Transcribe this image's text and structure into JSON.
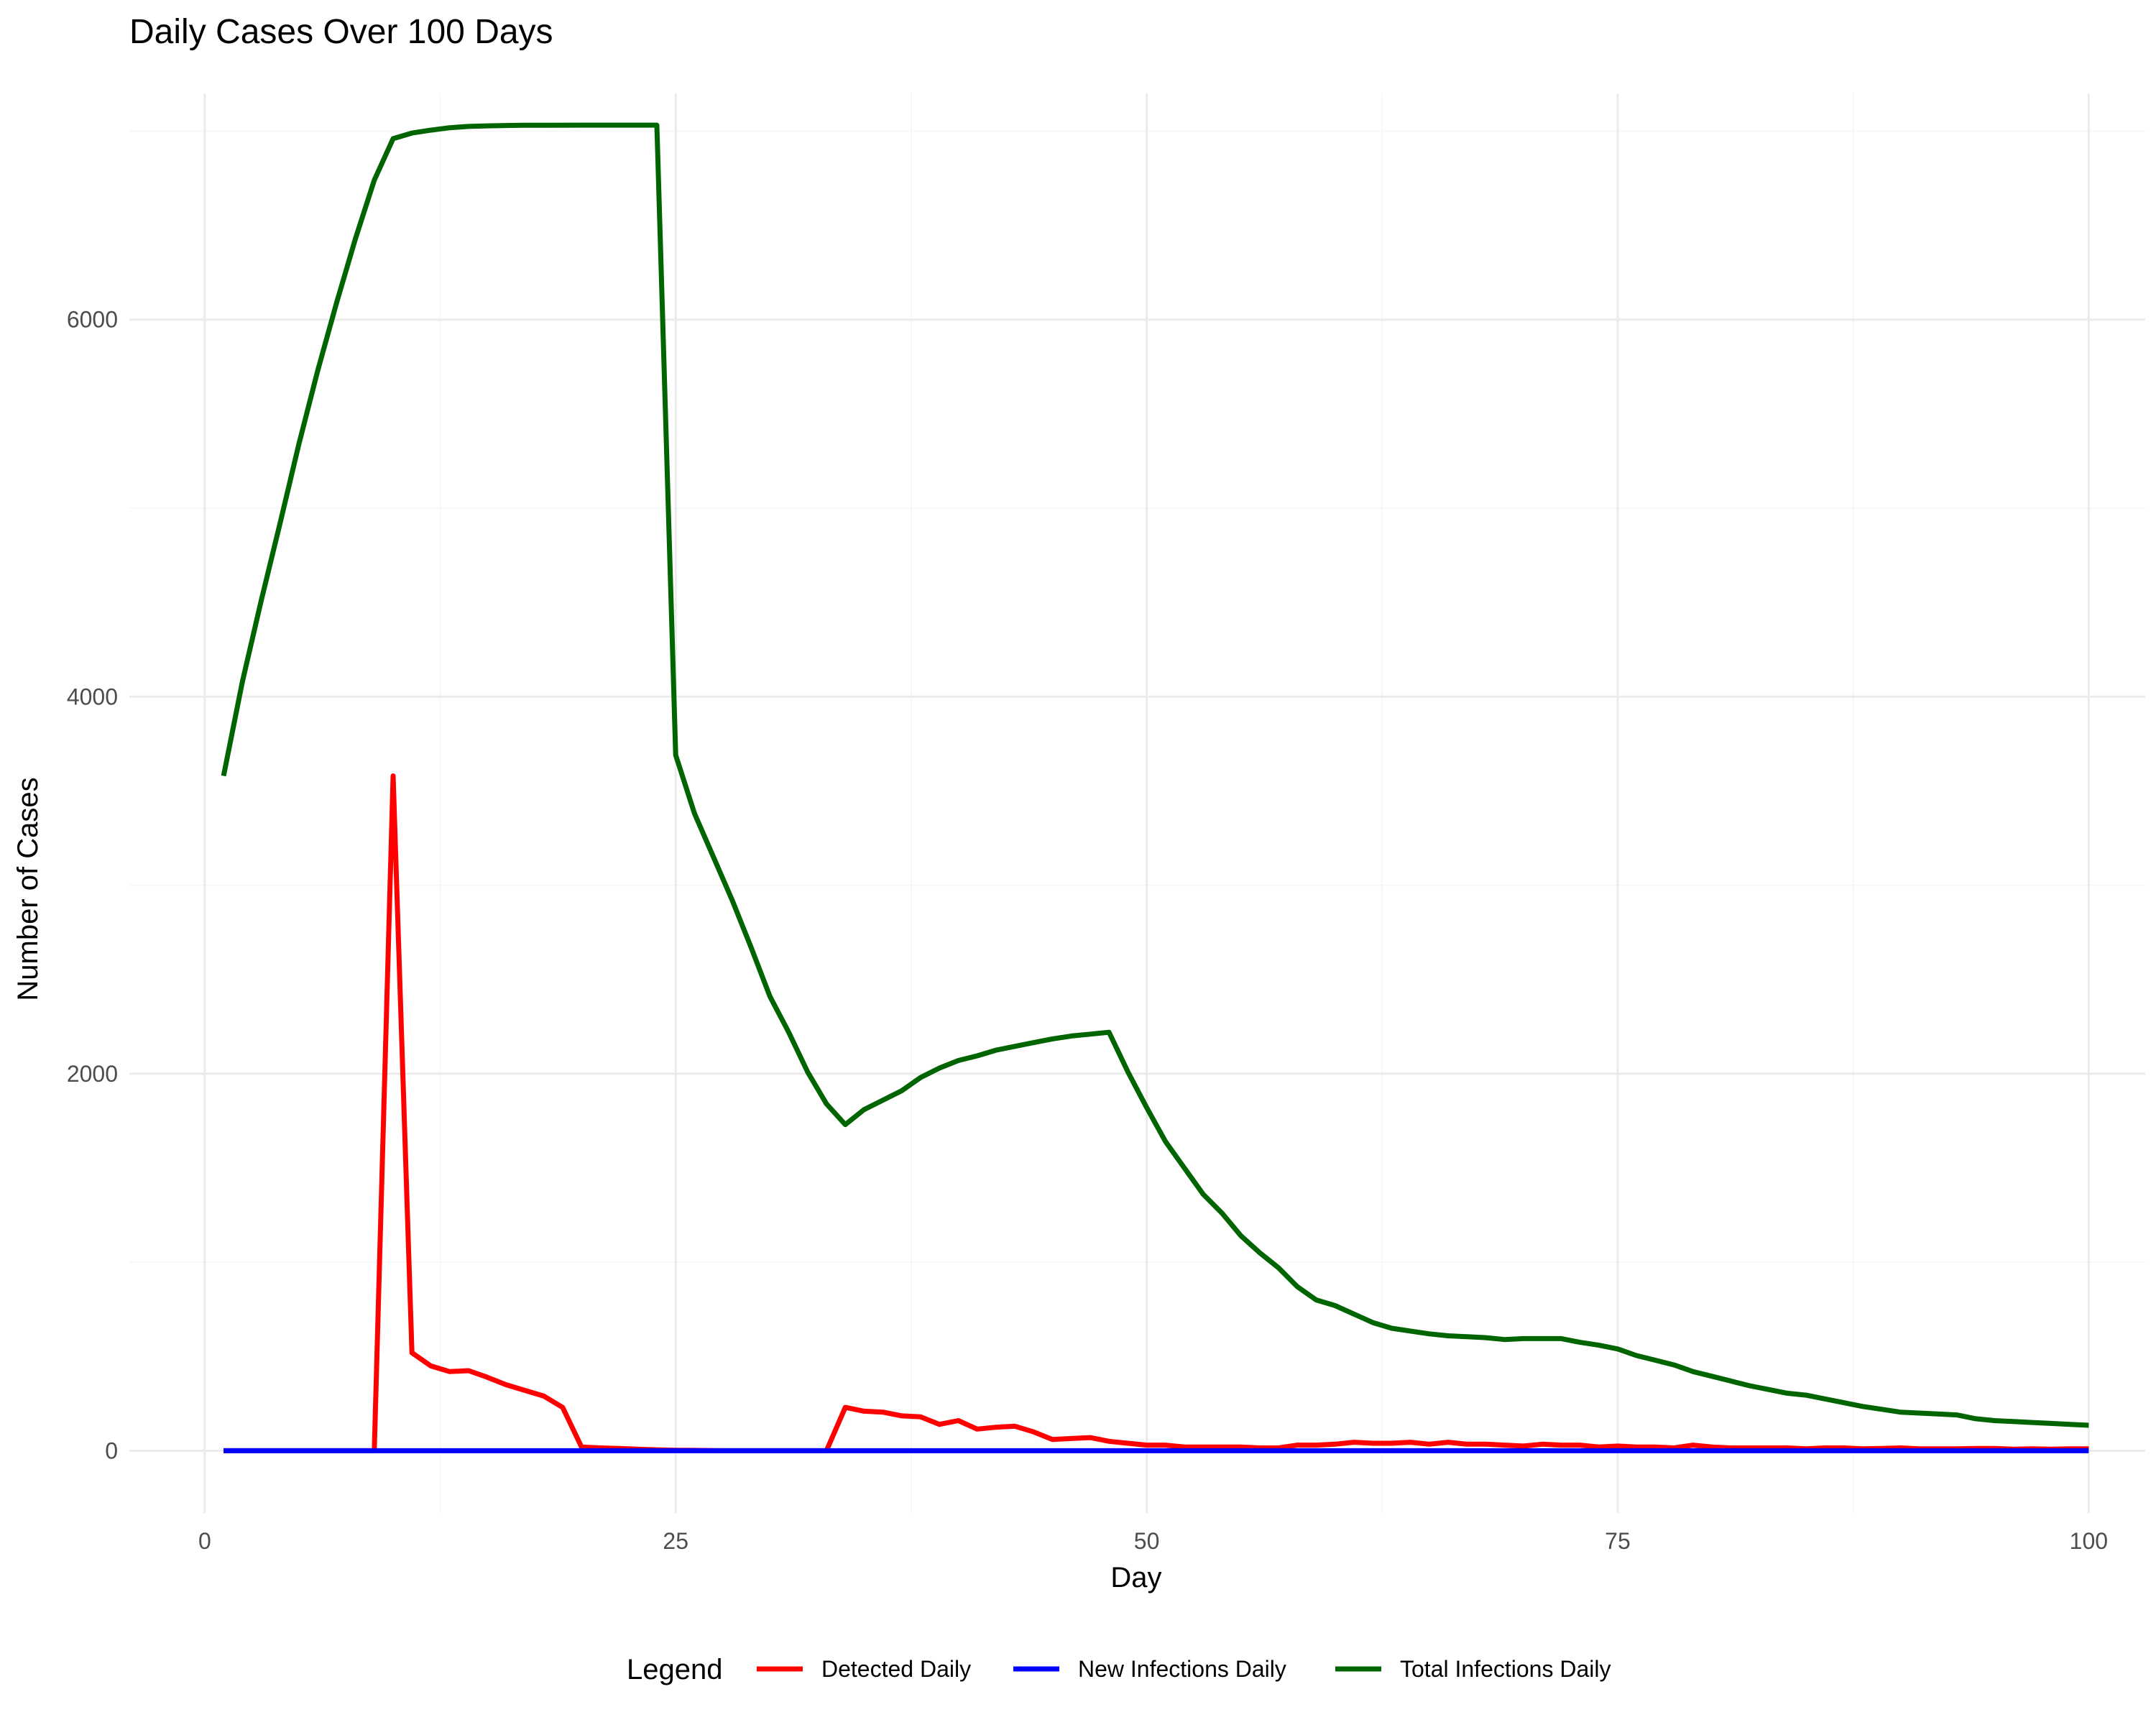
{
  "chart_data": {
    "type": "line",
    "title": "Daily Cases Over 100 Days",
    "xlabel": "Day",
    "ylabel": "Number of Cases",
    "xlim": [
      -4,
      103
    ],
    "ylim": [
      -330,
      7200
    ],
    "x_ticks": [
      0,
      25,
      50,
      75,
      100
    ],
    "y_ticks": [
      0,
      2000,
      4000,
      6000
    ],
    "grid": true,
    "legend": {
      "title": "Legend",
      "position": "bottom",
      "entries": [
        "Detected Daily",
        "New Infections Daily",
        "Total Infections Daily"
      ]
    },
    "colors": {
      "Detected Daily": "#ff0000",
      "New Infections Daily": "#0000ff",
      "Total Infections Daily": "#006400"
    },
    "series": [
      {
        "name": "Detected Daily",
        "points": [
          [
            1,
            0
          ],
          [
            9,
            0
          ],
          [
            10,
            3580
          ],
          [
            11,
            520
          ],
          [
            12,
            450
          ],
          [
            13,
            420
          ],
          [
            14,
            425
          ],
          [
            15,
            390
          ],
          [
            16,
            350
          ],
          [
            17,
            320
          ],
          [
            18,
            290
          ],
          [
            19,
            230
          ],
          [
            20,
            20
          ],
          [
            21,
            15
          ],
          [
            22,
            12
          ],
          [
            23,
            8
          ],
          [
            24,
            5
          ],
          [
            25,
            3
          ],
          [
            26,
            2
          ],
          [
            27,
            1
          ],
          [
            28,
            0
          ],
          [
            33,
            0
          ],
          [
            34,
            230
          ],
          [
            35,
            210
          ],
          [
            36,
            205
          ],
          [
            37,
            185
          ],
          [
            38,
            180
          ],
          [
            39,
            140
          ],
          [
            40,
            160
          ],
          [
            41,
            115
          ],
          [
            42,
            125
          ],
          [
            43,
            130
          ],
          [
            44,
            100
          ],
          [
            45,
            60
          ],
          [
            46,
            65
          ],
          [
            47,
            70
          ],
          [
            48,
            50
          ],
          [
            49,
            40
          ],
          [
            50,
            30
          ],
          [
            51,
            30
          ],
          [
            52,
            20
          ],
          [
            53,
            20
          ],
          [
            54,
            20
          ],
          [
            55,
            20
          ],
          [
            56,
            15
          ],
          [
            57,
            15
          ],
          [
            58,
            30
          ],
          [
            59,
            30
          ],
          [
            60,
            35
          ],
          [
            61,
            45
          ],
          [
            62,
            40
          ],
          [
            63,
            40
          ],
          [
            64,
            45
          ],
          [
            65,
            35
          ],
          [
            66,
            45
          ],
          [
            67,
            35
          ],
          [
            68,
            35
          ],
          [
            69,
            30
          ],
          [
            70,
            25
          ],
          [
            71,
            35
          ],
          [
            72,
            30
          ],
          [
            73,
            30
          ],
          [
            74,
            20
          ],
          [
            75,
            25
          ],
          [
            76,
            20
          ],
          [
            77,
            20
          ],
          [
            78,
            15
          ],
          [
            79,
            30
          ],
          [
            80,
            20
          ],
          [
            81,
            15
          ],
          [
            82,
            15
          ],
          [
            83,
            15
          ],
          [
            84,
            15
          ],
          [
            85,
            10
          ],
          [
            86,
            15
          ],
          [
            87,
            15
          ],
          [
            88,
            10
          ],
          [
            89,
            12
          ],
          [
            90,
            15
          ],
          [
            91,
            10
          ],
          [
            92,
            10
          ],
          [
            93,
            10
          ],
          [
            94,
            12
          ],
          [
            95,
            12
          ],
          [
            96,
            8
          ],
          [
            97,
            10
          ],
          [
            98,
            8
          ],
          [
            99,
            10
          ],
          [
            100,
            10
          ]
        ]
      },
      {
        "name": "New Infections Daily",
        "points": [
          [
            1,
            0
          ],
          [
            100,
            0
          ]
        ]
      },
      {
        "name": "Total Infections Daily",
        "points": [
          [
            1,
            3580
          ],
          [
            2,
            4080
          ],
          [
            3,
            4510
          ],
          [
            4,
            4920
          ],
          [
            5,
            5340
          ],
          [
            6,
            5730
          ],
          [
            7,
            6090
          ],
          [
            8,
            6430
          ],
          [
            9,
            6740
          ],
          [
            10,
            6960
          ],
          [
            11,
            6990
          ],
          [
            12,
            7005
          ],
          [
            13,
            7018
          ],
          [
            14,
            7025
          ],
          [
            15,
            7028
          ],
          [
            16,
            7030
          ],
          [
            17,
            7031
          ],
          [
            20,
            7032
          ],
          [
            24,
            7032
          ],
          [
            25,
            3690
          ],
          [
            26,
            3380
          ],
          [
            27,
            3150
          ],
          [
            28,
            2920
          ],
          [
            29,
            2670
          ],
          [
            30,
            2410
          ],
          [
            31,
            2220
          ],
          [
            32,
            2010
          ],
          [
            33,
            1840
          ],
          [
            34,
            1730
          ],
          [
            35,
            1810
          ],
          [
            36,
            1860
          ],
          [
            37,
            1910
          ],
          [
            38,
            1980
          ],
          [
            39,
            2030
          ],
          [
            40,
            2070
          ],
          [
            41,
            2095
          ],
          [
            42,
            2125
          ],
          [
            43,
            2145
          ],
          [
            44,
            2165
          ],
          [
            45,
            2185
          ],
          [
            46,
            2200
          ],
          [
            47,
            2210
          ],
          [
            48,
            2220
          ],
          [
            49,
            2010
          ],
          [
            50,
            1820
          ],
          [
            51,
            1640
          ],
          [
            52,
            1500
          ],
          [
            53,
            1360
          ],
          [
            54,
            1260
          ],
          [
            55,
            1140
          ],
          [
            56,
            1050
          ],
          [
            57,
            970
          ],
          [
            58,
            870
          ],
          [
            59,
            800
          ],
          [
            60,
            770
          ],
          [
            61,
            725
          ],
          [
            62,
            680
          ],
          [
            63,
            650
          ],
          [
            64,
            635
          ],
          [
            65,
            620
          ],
          [
            66,
            610
          ],
          [
            67,
            605
          ],
          [
            68,
            600
          ],
          [
            69,
            590
          ],
          [
            70,
            595
          ],
          [
            71,
            595
          ],
          [
            72,
            595
          ],
          [
            73,
            575
          ],
          [
            74,
            560
          ],
          [
            75,
            540
          ],
          [
            76,
            505
          ],
          [
            77,
            480
          ],
          [
            78,
            455
          ],
          [
            79,
            420
          ],
          [
            80,
            395
          ],
          [
            81,
            370
          ],
          [
            82,
            345
          ],
          [
            83,
            325
          ],
          [
            84,
            305
          ],
          [
            85,
            295
          ],
          [
            86,
            275
          ],
          [
            87,
            255
          ],
          [
            88,
            235
          ],
          [
            89,
            220
          ],
          [
            90,
            205
          ],
          [
            91,
            200
          ],
          [
            92,
            195
          ],
          [
            93,
            190
          ],
          [
            94,
            170
          ],
          [
            95,
            160
          ],
          [
            96,
            155
          ],
          [
            97,
            150
          ],
          [
            98,
            145
          ],
          [
            99,
            140
          ],
          [
            100,
            135
          ]
        ]
      }
    ]
  }
}
